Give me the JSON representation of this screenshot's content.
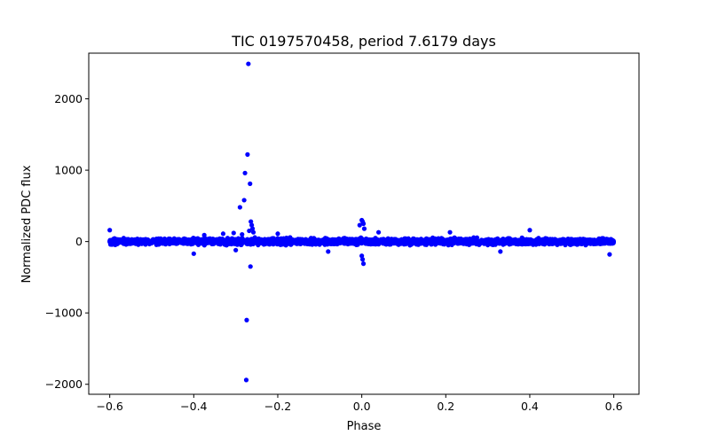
{
  "chart_data": {
    "type": "scatter",
    "title": "TIC 0197570458, period 7.6179 days",
    "xlabel": "Phase",
    "ylabel": "Normalized PDC flux",
    "xlim": [
      -0.65,
      0.66
    ],
    "ylim": [
      -2140,
      2640
    ],
    "x_ticks": [
      -0.6,
      -0.4,
      -0.2,
      0.0,
      0.2,
      0.4,
      0.6
    ],
    "x_tick_labels": [
      "−0.6",
      "−0.4",
      "−0.2",
      "0.0",
      "0.2",
      "0.4",
      "0.6"
    ],
    "y_ticks": [
      -2000,
      -1000,
      0,
      1000,
      2000
    ],
    "y_tick_labels": [
      "−2000",
      "−1000",
      "0",
      "1000",
      "2000"
    ],
    "grid": false,
    "legend": "none",
    "series": [
      {
        "name": "PDC flux",
        "color": "#0000ff",
        "marker": "circle",
        "band": {
          "x_range": [
            -0.6,
            0.6
          ],
          "y_range": [
            -90,
            90
          ],
          "note": "dense band of thousands of points"
        },
        "points": [
          {
            "x": -0.6,
            "y": 160
          },
          {
            "x": -0.4,
            "y": -170
          },
          {
            "x": -0.375,
            "y": 90
          },
          {
            "x": -0.33,
            "y": 110
          },
          {
            "x": -0.305,
            "y": 120
          },
          {
            "x": -0.3,
            "y": -120
          },
          {
            "x": -0.29,
            "y": 480
          },
          {
            "x": -0.285,
            "y": 100
          },
          {
            "x": -0.28,
            "y": 580
          },
          {
            "x": -0.278,
            "y": 960
          },
          {
            "x": -0.275,
            "y": -1940
          },
          {
            "x": -0.274,
            "y": -1100
          },
          {
            "x": -0.272,
            "y": 1220
          },
          {
            "x": -0.27,
            "y": 2490
          },
          {
            "x": -0.268,
            "y": 150
          },
          {
            "x": -0.266,
            "y": 810
          },
          {
            "x": -0.265,
            "y": -350
          },
          {
            "x": -0.264,
            "y": 280
          },
          {
            "x": -0.262,
            "y": 230
          },
          {
            "x": -0.26,
            "y": 180
          },
          {
            "x": -0.258,
            "y": 130
          },
          {
            "x": -0.2,
            "y": 110
          },
          {
            "x": -0.08,
            "y": -140
          },
          {
            "x": -0.005,
            "y": 230
          },
          {
            "x": 0.0,
            "y": 300
          },
          {
            "x": 0.002,
            "y": 280
          },
          {
            "x": 0.004,
            "y": 250
          },
          {
            "x": 0.0,
            "y": -200
          },
          {
            "x": 0.002,
            "y": -250
          },
          {
            "x": 0.004,
            "y": -310
          },
          {
            "x": 0.006,
            "y": 180
          },
          {
            "x": 0.04,
            "y": 130
          },
          {
            "x": 0.21,
            "y": 130
          },
          {
            "x": 0.33,
            "y": -140
          },
          {
            "x": 0.4,
            "y": 160
          },
          {
            "x": 0.59,
            "y": -180
          }
        ]
      }
    ]
  }
}
